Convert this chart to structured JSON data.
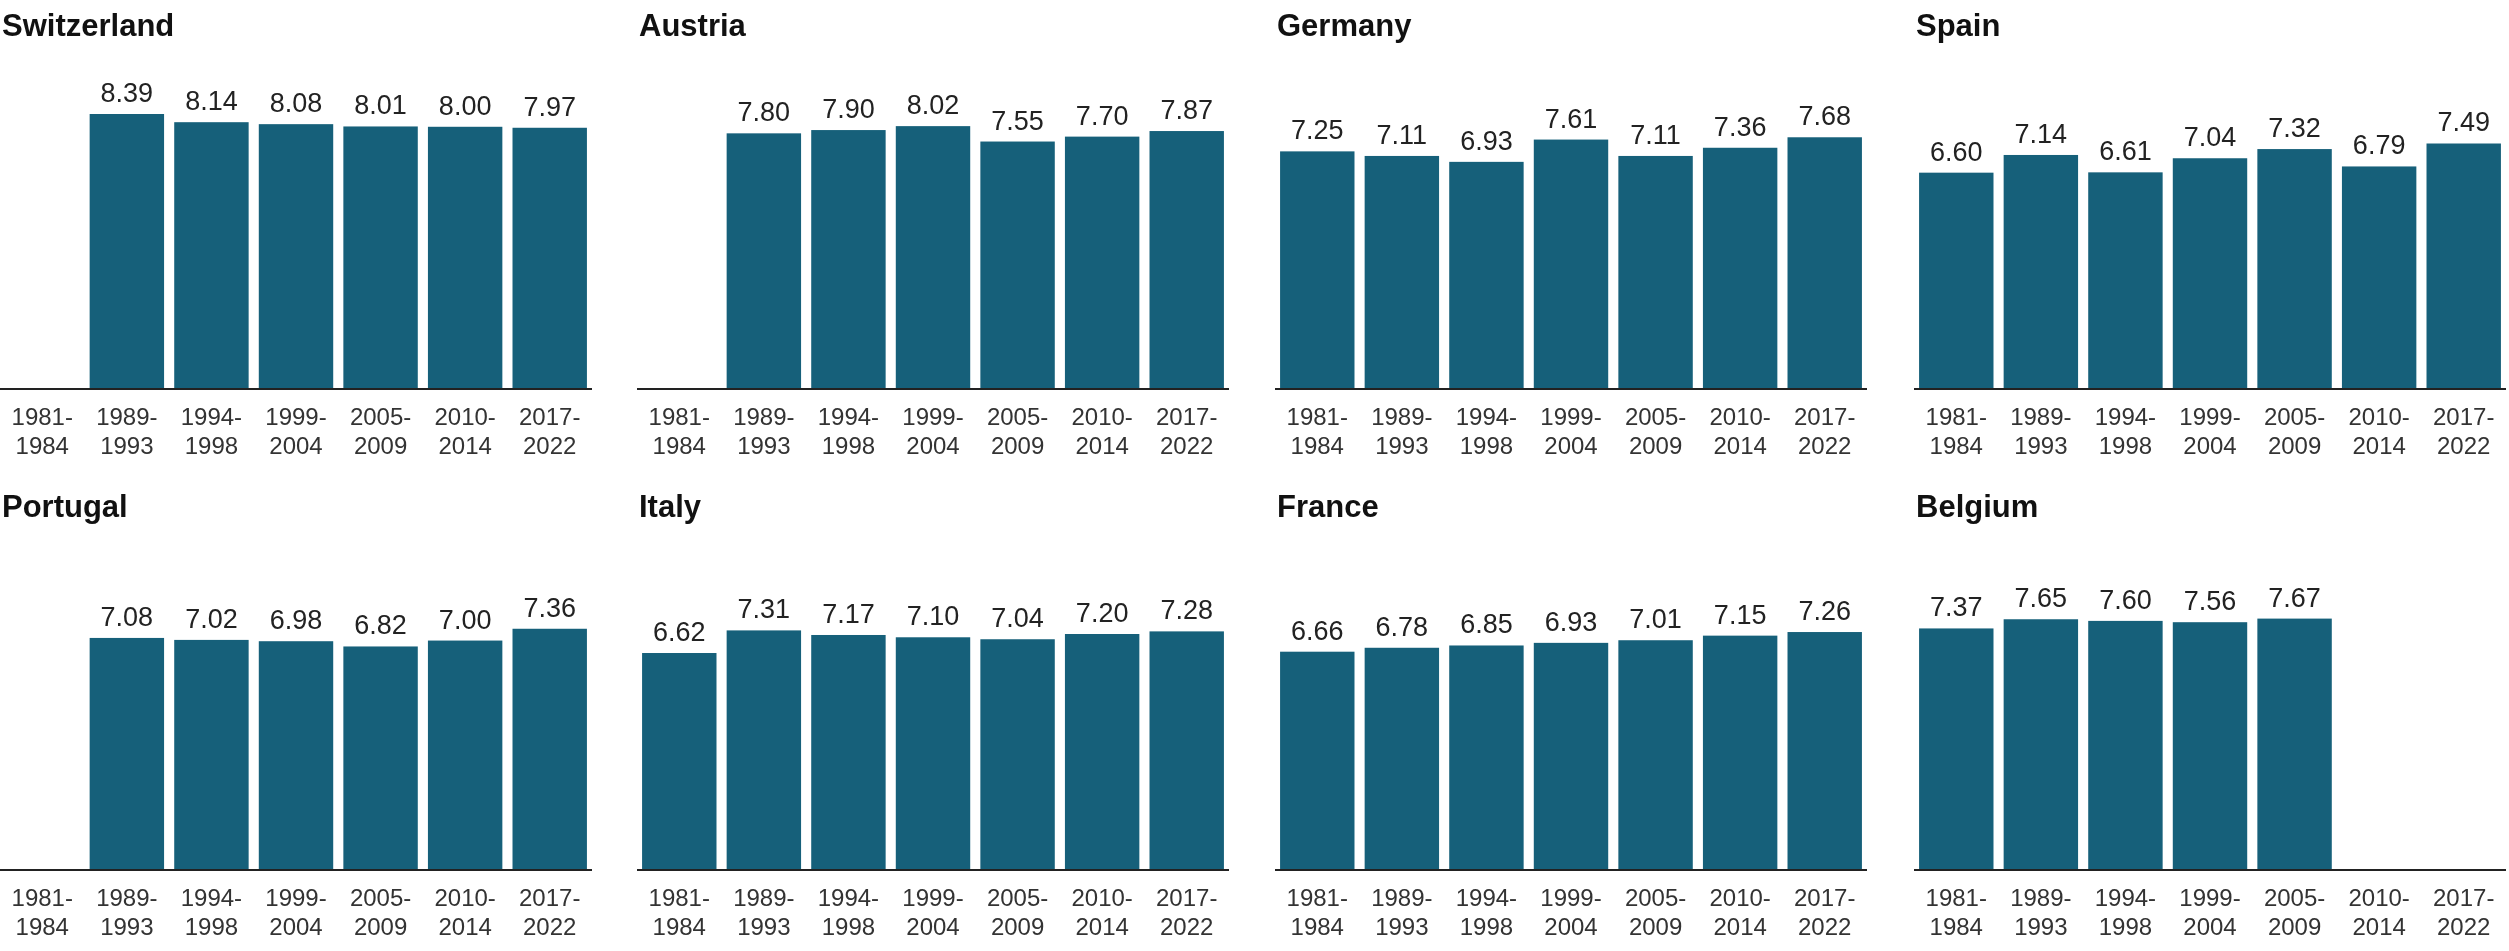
{
  "chart_data": [
    {
      "type": "bar",
      "title": "Switzerland",
      "categories": [
        "1981-1984",
        "1989-1993",
        "1994-1998",
        "1999-2004",
        "2005-2009",
        "2010-2014",
        "2017-2022"
      ],
      "values": [
        null,
        8.39,
        8.14,
        8.08,
        8.01,
        8.0,
        7.97
      ],
      "value_labels": [
        null,
        "8.39",
        "8.14",
        "8.08",
        "8.01",
        "8.00",
        "7.97"
      ],
      "color": "#16607a"
    },
    {
      "type": "bar",
      "title": "Austria",
      "categories": [
        "1981-1984",
        "1989-1993",
        "1994-1998",
        "1999-2004",
        "2005-2009",
        "2010-2014",
        "2017-2022"
      ],
      "values": [
        null,
        7.8,
        7.9,
        8.02,
        7.55,
        7.7,
        7.87
      ],
      "value_labels": [
        null,
        "7.80",
        "7.90",
        "8.02",
        "7.55",
        "7.70",
        "7.87"
      ],
      "color": "#16607a"
    },
    {
      "type": "bar",
      "title": "Germany",
      "categories": [
        "1981-1984",
        "1989-1993",
        "1994-1998",
        "1999-2004",
        "2005-2009",
        "2010-2014",
        "2017-2022"
      ],
      "values": [
        7.25,
        7.11,
        6.93,
        7.61,
        7.11,
        7.36,
        7.68
      ],
      "value_labels": [
        "7.25",
        "7.11",
        "6.93",
        "7.61",
        "7.11",
        "7.36",
        "7.68"
      ],
      "color": "#16607a"
    },
    {
      "type": "bar",
      "title": "Spain",
      "categories": [
        "1981-1984",
        "1989-1993",
        "1994-1998",
        "1999-2004",
        "2005-2009",
        "2010-2014",
        "2017-2022"
      ],
      "values": [
        6.6,
        7.14,
        6.61,
        7.04,
        7.32,
        6.79,
        7.49
      ],
      "value_labels": [
        "6.60",
        "7.14",
        "6.61",
        "7.04",
        "7.32",
        "6.79",
        "7.49"
      ],
      "color": "#16607a"
    },
    {
      "type": "bar",
      "title": "Portugal",
      "categories": [
        "1981-1984",
        "1989-1993",
        "1994-1998",
        "1999-2004",
        "2005-2009",
        "2010-2014",
        "2017-2022"
      ],
      "values": [
        null,
        7.08,
        7.02,
        6.98,
        6.82,
        7.0,
        7.36
      ],
      "value_labels": [
        null,
        "7.08",
        "7.02",
        "6.98",
        "6.82",
        "7.00",
        "7.36"
      ],
      "color": "#16607a"
    },
    {
      "type": "bar",
      "title": "Italy",
      "categories": [
        "1981-1984",
        "1989-1993",
        "1994-1998",
        "1999-2004",
        "2005-2009",
        "2010-2014",
        "2017-2022"
      ],
      "values": [
        6.62,
        7.31,
        7.17,
        7.1,
        7.04,
        7.2,
        7.28
      ],
      "value_labels": [
        "6.62",
        "7.31",
        "7.17",
        "7.10",
        "7.04",
        "7.20",
        "7.28"
      ],
      "color": "#16607a"
    },
    {
      "type": "bar",
      "title": "France",
      "categories": [
        "1981-1984",
        "1989-1993",
        "1994-1998",
        "1999-2004",
        "2005-2009",
        "2010-2014",
        "2017-2022"
      ],
      "values": [
        6.66,
        6.78,
        6.85,
        6.93,
        7.01,
        7.15,
        7.26
      ],
      "value_labels": [
        "6.66",
        "6.78",
        "6.85",
        "6.93",
        "7.01",
        "7.15",
        "7.26"
      ],
      "color": "#16607a"
    },
    {
      "type": "bar",
      "title": "Belgium",
      "categories": [
        "1981-1984",
        "1989-1993",
        "1994-1998",
        "1999-2004",
        "2005-2009",
        "2010-2014",
        "2017-2022"
      ],
      "values": [
        7.37,
        7.65,
        7.6,
        7.56,
        7.67,
        null,
        null
      ],
      "value_labels": [
        "7.37",
        "7.65",
        "7.60",
        "7.56",
        "7.67",
        null,
        null
      ],
      "color": "#16607a"
    }
  ]
}
